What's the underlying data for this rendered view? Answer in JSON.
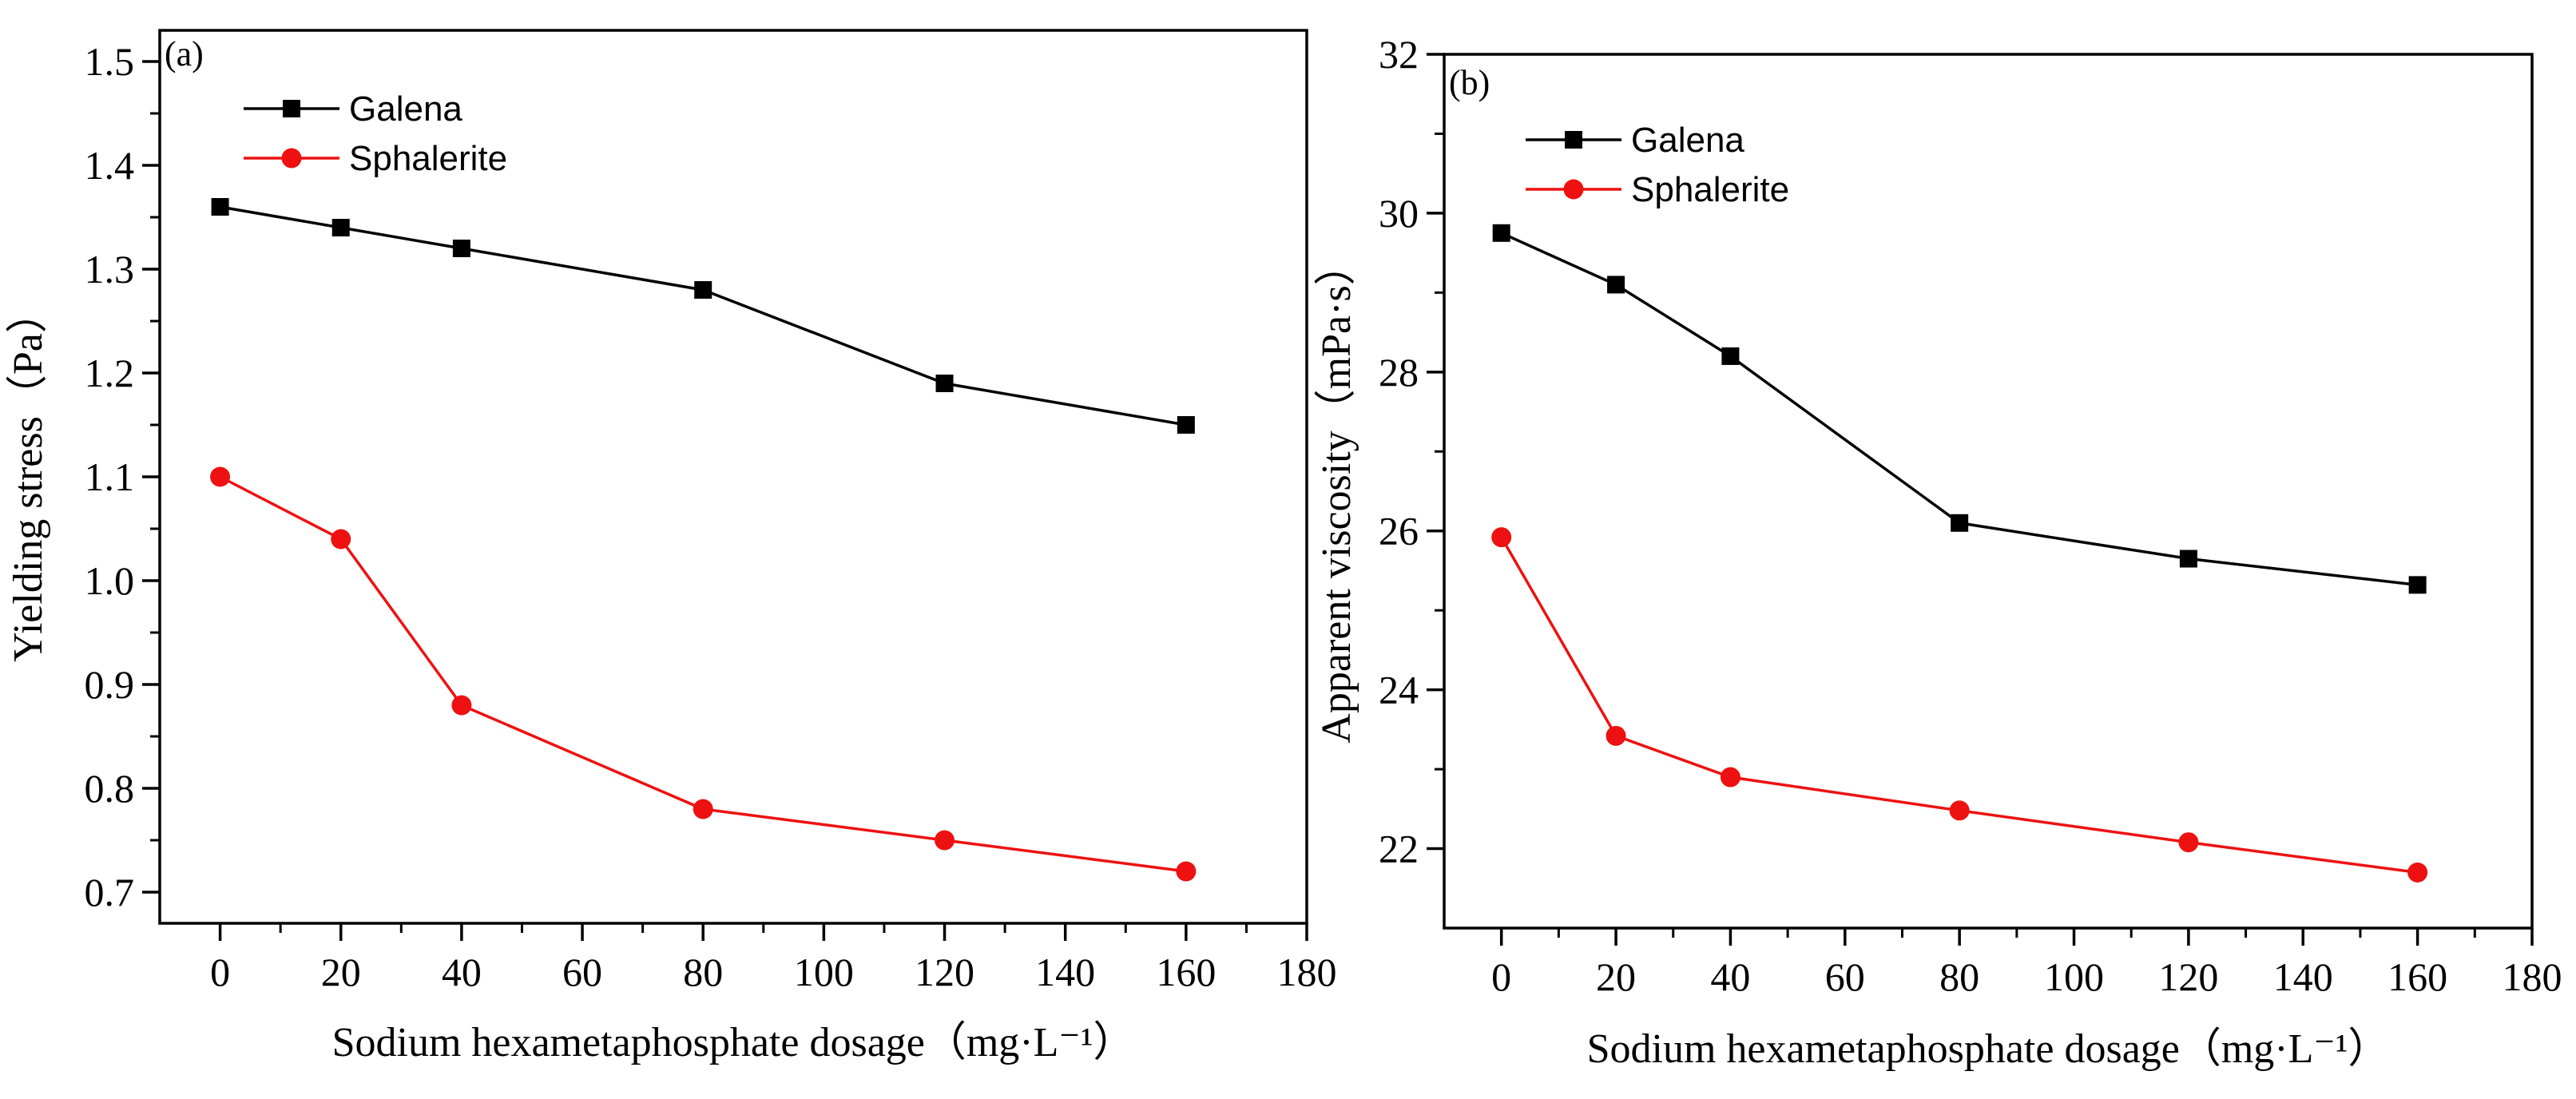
{
  "chart_data": [
    {
      "type": "line",
      "panel_label": "(a)",
      "xlabel": "Sodium hexametaphosphate dosage（mg·L⁻¹）",
      "ylabel": "Yielding stress（Pa）",
      "xlim": [
        -10,
        180
      ],
      "ylim": [
        0.67,
        1.53
      ],
      "x_ticks": [
        "0",
        "20",
        "40",
        "60",
        "80",
        "100",
        "120",
        "140",
        "160",
        "180"
      ],
      "y_ticks": [
        "0.7",
        "0.8",
        "0.9",
        "1.0",
        "1.1",
        "1.2",
        "1.3",
        "1.4",
        "1.5"
      ],
      "legend_position": "top-left",
      "x": [
        0,
        20,
        40,
        80,
        120,
        160
      ],
      "series": [
        {
          "name": "Galena",
          "marker": "square",
          "color": "#000000",
          "values": [
            1.36,
            1.34,
            1.32,
            1.28,
            1.19,
            1.15
          ]
        },
        {
          "name": "Sphalerite",
          "marker": "circle",
          "color": "#ee1111",
          "values": [
            1.1,
            1.04,
            0.88,
            0.78,
            0.75,
            0.72
          ]
        }
      ]
    },
    {
      "type": "line",
      "panel_label": "(b)",
      "xlabel": "Sodium hexametaphosphate dosage（mg·L⁻¹）",
      "ylabel": "Apparent viscosity（mPa·s）",
      "xlim": [
        -10,
        180
      ],
      "ylim": [
        21,
        32
      ],
      "x_ticks": [
        "0",
        "20",
        "40",
        "60",
        "80",
        "100",
        "120",
        "140",
        "160",
        "180"
      ],
      "y_ticks": [
        "22",
        "24",
        "26",
        "28",
        "30",
        "32"
      ],
      "legend_position": "top-left",
      "x": [
        0,
        20,
        40,
        80,
        120,
        160
      ],
      "series": [
        {
          "name": "Galena",
          "marker": "square",
          "color": "#000000",
          "values": [
            29.75,
            29.1,
            28.2,
            26.1,
            25.65,
            25.32
          ]
        },
        {
          "name": "Sphalerite",
          "marker": "circle",
          "color": "#ee1111",
          "values": [
            25.92,
            23.42,
            22.9,
            22.48,
            22.08,
            21.7
          ]
        }
      ]
    }
  ]
}
